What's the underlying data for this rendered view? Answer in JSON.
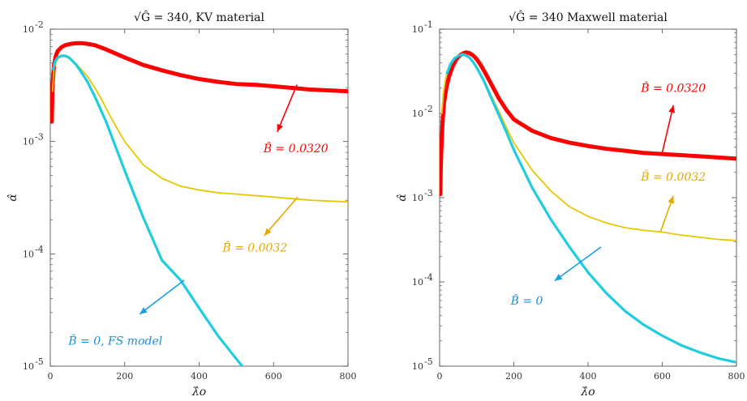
{
  "chart_data": [
    {
      "type": "line",
      "title": "√Ĝ = 340, KV material",
      "xlabel": "λ̂o",
      "ylabel": "α̂",
      "xlim": [
        0,
        800
      ],
      "ylim": [
        1e-05,
        0.01
      ],
      "yscale": "log",
      "xticks": [
        0,
        200,
        400,
        600,
        800
      ],
      "xtick_labels": [
        "0",
        "200",
        "400",
        "600",
        "800"
      ],
      "yticks": [
        1e-05,
        0.0001,
        0.001,
        0.01
      ],
      "ytick_labels": [
        {
          "base": "10",
          "exp": "-5"
        },
        {
          "base": "10",
          "exp": "-4"
        },
        {
          "base": "10",
          "exp": "-3"
        },
        {
          "base": "10",
          "exp": "-2"
        }
      ],
      "grid": false,
      "series": [
        {
          "name": "B̂ = 0.0320",
          "color": "#ff0000",
          "width": "thick",
          "x": [
            4,
            6,
            10,
            15,
            20,
            30,
            40,
            55,
            70,
            85,
            100,
            120,
            150,
            200,
            250,
            300,
            350,
            400,
            450,
            500,
            550,
            600,
            650,
            700,
            750,
            800
          ],
          "y": [
            0.0015,
            0.0032,
            0.0048,
            0.0058,
            0.0064,
            0.0069,
            0.0072,
            0.0074,
            0.0075,
            0.0075,
            0.0074,
            0.0072,
            0.0066,
            0.0056,
            0.0048,
            0.0043,
            0.0039,
            0.0036,
            0.0034,
            0.00325,
            0.0032,
            0.0031,
            0.003,
            0.0029,
            0.00285,
            0.0028
          ]
        },
        {
          "name": "B̂ = 0.0032",
          "color": "#e6c800",
          "width": "thin",
          "x": [
            6,
            10,
            20,
            30,
            40,
            50,
            60,
            70,
            80,
            100,
            120,
            140,
            160,
            180,
            200,
            250,
            300,
            350,
            400,
            450,
            500,
            550,
            600,
            650,
            700,
            750,
            800
          ],
          "y": [
            0.0028,
            0.0045,
            0.0055,
            0.0057,
            0.0057,
            0.0055,
            0.0052,
            0.0049,
            0.0045,
            0.0038,
            0.003,
            0.0023,
            0.0017,
            0.0013,
            0.001,
            0.00062,
            0.00047,
            0.0004,
            0.00037,
            0.00035,
            0.00034,
            0.00033,
            0.00032,
            0.00031,
            0.0003,
            0.000295,
            0.00029
          ]
        },
        {
          "name": "B̂ = 0, FS model",
          "color": "#20cce0",
          "width": "medium",
          "x": [
            8,
            12,
            20,
            30,
            40,
            50,
            60,
            70,
            80,
            100,
            120,
            150,
            200,
            250,
            300,
            350,
            400,
            450,
            500,
            525
          ],
          "y": [
            0.0044,
            0.0051,
            0.0056,
            0.0058,
            0.0058,
            0.0056,
            0.0052,
            0.0048,
            0.0043,
            0.0034,
            0.0025,
            0.0015,
            0.00055,
            0.00021,
            8.77e-05,
            5.84e-05,
            3.29e-05,
            1.88e-05,
            1.16e-05,
            9.2e-06
          ]
        }
      ],
      "annotations": [
        {
          "text": "B̂ = 0.0320",
          "color": "#ff0000",
          "x": 660,
          "y": 0.0008
        },
        {
          "text": "B̂ = 0.0032",
          "color": "#e6a800",
          "x": 550,
          "y": 0.000105
        },
        {
          "text": "B̂ = 0, FS model",
          "color": "#1a8fd6",
          "x": 175,
          "y": 1.55e-05
        }
      ],
      "arrows": [
        {
          "color": "#ff0000",
          "from": [
            663,
            0.0032
          ],
          "to": [
            610,
            0.00122
          ]
        },
        {
          "color": "#e6a800",
          "from": [
            665,
            0.00032
          ],
          "to": [
            575,
            0.000145
          ]
        },
        {
          "color": "#1a9fe6",
          "from": [
            360,
            5.84e-05
          ],
          "to": [
            240,
            2.9e-05
          ]
        }
      ]
    },
    {
      "type": "line",
      "title": "√Ĝ = 340 Maxwell material",
      "xlabel": "λ̂o",
      "ylabel": "α̂",
      "xlim": [
        0,
        800
      ],
      "ylim": [
        1e-05,
        0.1
      ],
      "yscale": "log",
      "xticks": [
        0,
        200,
        400,
        600,
        800
      ],
      "xtick_labels": [
        "0",
        "200",
        "400",
        "600",
        "800"
      ],
      "yticks": [
        1e-05,
        0.0001,
        0.001,
        0.01,
        0.1
      ],
      "ytick_labels": [
        {
          "base": "10",
          "exp": "-5"
        },
        {
          "base": "10",
          "exp": "-4"
        },
        {
          "base": "10",
          "exp": "-3"
        },
        {
          "base": "10",
          "exp": "-2"
        },
        {
          "base": "10",
          "exp": "-1"
        }
      ],
      "grid": false,
      "series": [
        {
          "name": "B̂ = 0.0320",
          "color": "#ff0000",
          "width": "thick",
          "x": [
            2,
            3,
            5,
            8,
            12,
            18,
            25,
            35,
            45,
            55,
            65,
            72,
            80,
            90,
            100,
            110,
            120,
            140,
            160,
            180,
            200,
            250,
            300,
            350,
            400,
            450,
            500,
            550,
            600,
            650,
            700,
            750,
            800
          ],
          "y": [
            0.0011,
            0.0022,
            0.004,
            0.008,
            0.0135,
            0.02,
            0.027,
            0.036,
            0.044,
            0.049,
            0.052,
            0.053,
            0.052,
            0.049,
            0.044,
            0.038,
            0.032,
            0.022,
            0.015,
            0.011,
            0.0085,
            0.0062,
            0.0051,
            0.0045,
            0.0041,
            0.0038,
            0.0036,
            0.0034,
            0.0033,
            0.0032,
            0.0031,
            0.003,
            0.0029
          ]
        },
        {
          "name": "B̂ = 0.0032",
          "color": "#e6c800",
          "width": "thin",
          "x": [
            6,
            10,
            15,
            20,
            30,
            40,
            50,
            60,
            70,
            80,
            90,
            100,
            120,
            140,
            160,
            180,
            200,
            250,
            300,
            350,
            400,
            450,
            500,
            550,
            600,
            650,
            700,
            750,
            800
          ],
          "y": [
            0.01,
            0.017,
            0.024,
            0.03,
            0.039,
            0.045,
            0.049,
            0.051,
            0.05,
            0.047,
            0.042,
            0.036,
            0.025,
            0.016,
            0.0105,
            0.0068,
            0.0045,
            0.0021,
            0.0012,
            0.00078,
            0.0006,
            0.0005,
            0.00044,
            0.00041,
            0.00039,
            0.00036,
            0.00034,
            0.00032,
            0.00031
          ]
        },
        {
          "name": "B̂ = 0",
          "color": "#20cce0",
          "width": "medium",
          "x": [
            20,
            30,
            40,
            50,
            60,
            70,
            80,
            90,
            100,
            120,
            140,
            160,
            180,
            200,
            250,
            300,
            350,
            400,
            450,
            500,
            550,
            600,
            650,
            700,
            750,
            800
          ],
          "y": [
            0.03,
            0.039,
            0.045,
            0.048,
            0.05,
            0.049,
            0.046,
            0.041,
            0.035,
            0.024,
            0.015,
            0.0095,
            0.006,
            0.0037,
            0.0013,
            0.00055,
            0.00026,
            0.00013,
            7.3e-05,
            4.5e-05,
            3.1e-05,
            2.3e-05,
            1.78e-05,
            1.46e-05,
            1.24e-05,
            1.11e-05
          ]
        }
      ],
      "annotations": [
        {
          "text": "B̂ = 0.0320",
          "color": "#ff0000",
          "x": 630,
          "y": 0.018
        },
        {
          "text": "B̂ = 0.0032",
          "color": "#e6a800",
          "x": 630,
          "y": 0.0016
        },
        {
          "text": "B̂ = 0",
          "color": "#1a8fd6",
          "x": 235,
          "y": 5.4e-05
        }
      ],
      "arrows": [
        {
          "color": "#ff0000",
          "from": [
            600,
            0.0034
          ],
          "to": [
            630,
            0.0125
          ]
        },
        {
          "color": "#e6a800",
          "from": [
            595,
            0.00039
          ],
          "to": [
            630,
            0.00105
          ]
        },
        {
          "color": "#1a9fe6",
          "from": [
            435,
            0.00026
          ],
          "to": [
            310,
            0.000103
          ]
        }
      ]
    }
  ]
}
